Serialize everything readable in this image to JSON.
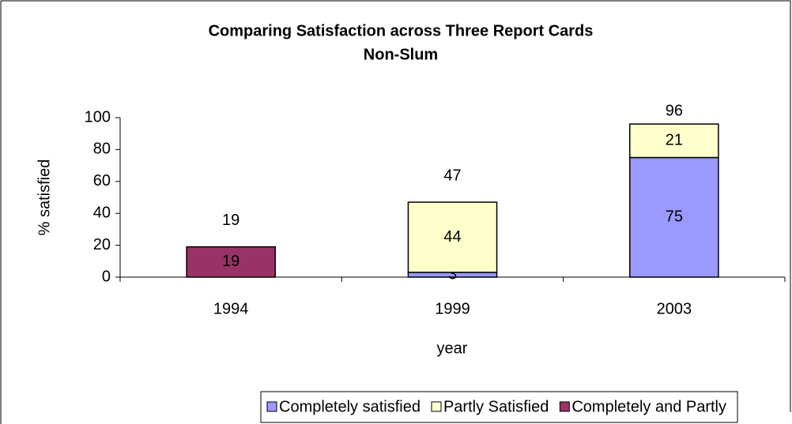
{
  "chart_data": {
    "type": "stacked_bar",
    "title": "Comparing Satisfaction across Three Report Cards",
    "subtitle": "Non-Slum",
    "x_label": "year",
    "y_label": "% satisfied",
    "categories": [
      "1994",
      "1999",
      "2003"
    ],
    "series": [
      {
        "name": "Completely satisfied",
        "color": "#9999ff",
        "values": [
          null,
          3,
          75
        ]
      },
      {
        "name": "Partly Satisfied",
        "color": "#ffffcc",
        "values": [
          null,
          44,
          21
        ]
      },
      {
        "name": "Completely and Partly",
        "color": "#993366",
        "values": [
          19,
          null,
          null
        ]
      }
    ],
    "totals": [
      19,
      47,
      96
    ],
    "ylim": [
      0,
      100
    ],
    "yticks": [
      0,
      20,
      40,
      60,
      80,
      100
    ],
    "grid": false,
    "legend": "bottom"
  }
}
